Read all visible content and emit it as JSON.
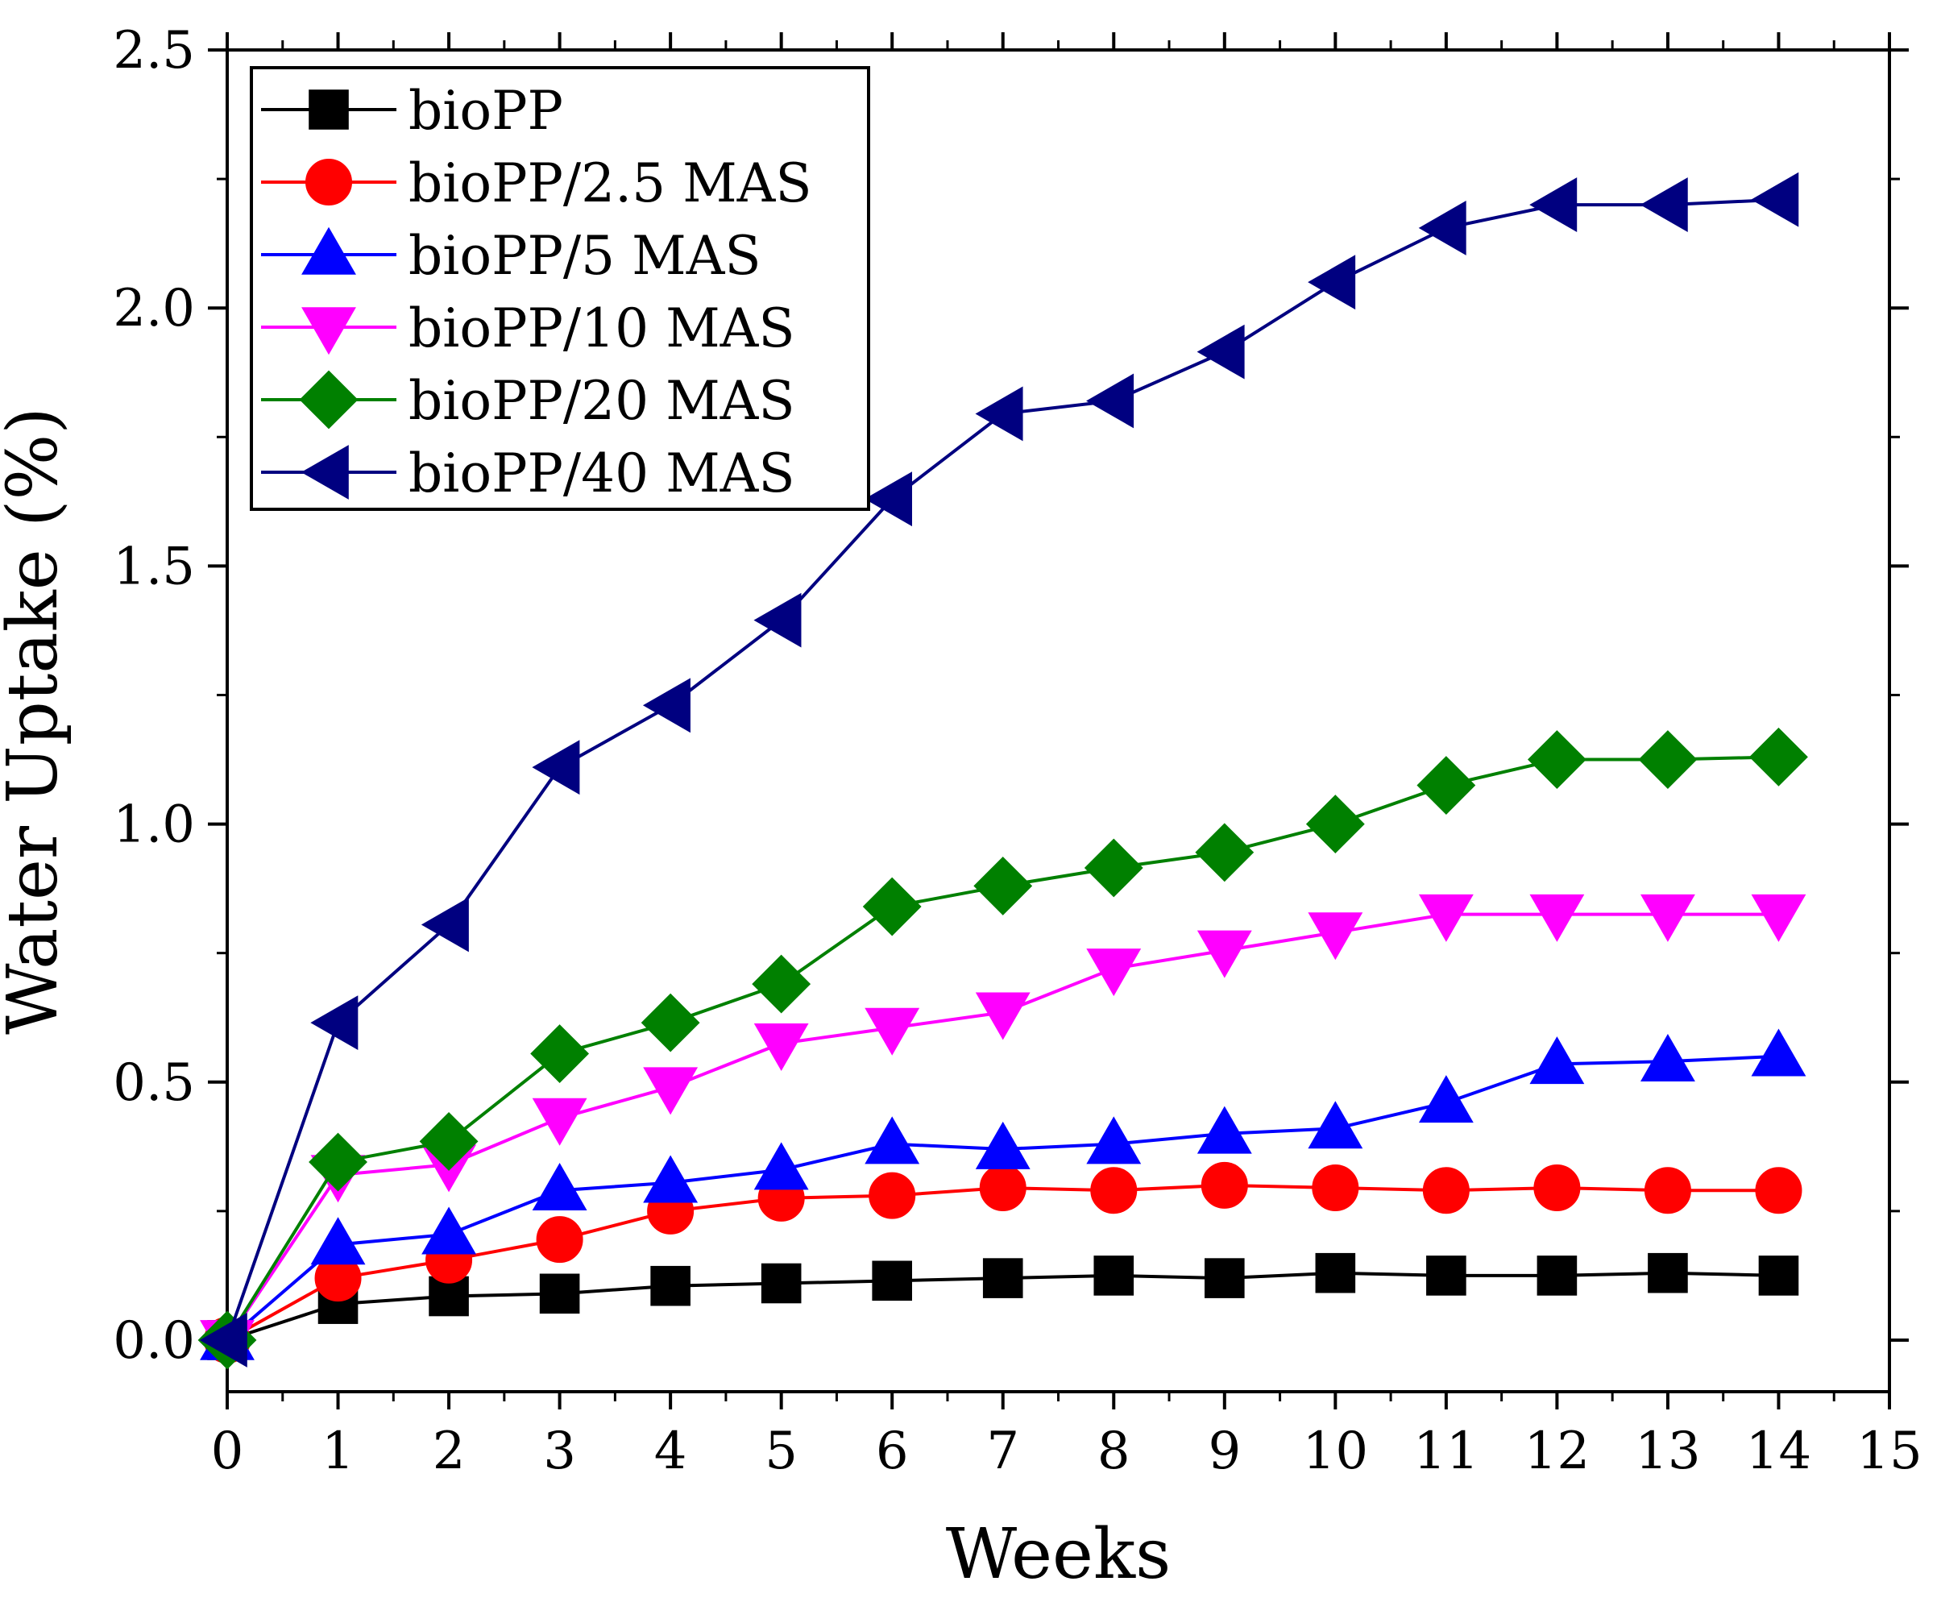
{
  "chart_data": {
    "type": "line",
    "title": "",
    "xlabel": "Weeks",
    "ylabel": "Water Uptake (%)",
    "xlim": [
      0,
      15
    ],
    "ylim": [
      -0.1,
      2.5
    ],
    "x_ticks": [
      "0",
      "1",
      "2",
      "3",
      "4",
      "5",
      "6",
      "7",
      "8",
      "9",
      "10",
      "11",
      "12",
      "13",
      "14",
      "15"
    ],
    "y_ticks": [
      "0.0",
      "0.5",
      "1.0",
      "1.5",
      "2.0",
      "2.5"
    ],
    "grid": false,
    "legend_position": "top-left",
    "x": [
      0,
      1,
      2,
      3,
      4,
      5,
      6,
      7,
      8,
      9,
      10,
      11,
      12,
      13,
      14
    ],
    "series": [
      {
        "name": "bioPP",
        "color": "#000000",
        "marker": "square",
        "values": [
          0.0,
          0.07,
          0.085,
          0.09,
          0.105,
          0.11,
          0.115,
          0.12,
          0.125,
          0.12,
          0.13,
          0.125,
          0.125,
          0.13,
          0.125
        ]
      },
      {
        "name": "bioPP/2.5 MAS",
        "color": "#ff0000",
        "marker": "circle",
        "values": [
          0.0,
          0.12,
          0.155,
          0.195,
          0.25,
          0.275,
          0.28,
          0.295,
          0.29,
          0.3,
          0.295,
          0.29,
          0.295,
          0.29,
          0.29
        ]
      },
      {
        "name": "bioPP/5 MAS",
        "color": "#0000ff",
        "marker": "triangle-up",
        "values": [
          0.0,
          0.185,
          0.205,
          0.29,
          0.305,
          0.33,
          0.38,
          0.37,
          0.38,
          0.4,
          0.41,
          0.46,
          0.535,
          0.54,
          0.55
        ]
      },
      {
        "name": "bioPP/10 MAS",
        "color": "#ff00ff",
        "marker": "triangle-down",
        "values": [
          0.0,
          0.32,
          0.34,
          0.43,
          0.49,
          0.575,
          0.605,
          0.635,
          0.72,
          0.755,
          0.79,
          0.825,
          0.825,
          0.825,
          0.825
        ]
      },
      {
        "name": "bioPP/20 MAS",
        "color": "#008000",
        "marker": "diamond",
        "values": [
          0.0,
          0.345,
          0.385,
          0.555,
          0.615,
          0.69,
          0.84,
          0.88,
          0.915,
          0.945,
          1.0,
          1.075,
          1.125,
          1.125,
          1.13
        ]
      },
      {
        "name": "bioPP/40 MAS",
        "color": "#000080",
        "marker": "triangle-left",
        "values": [
          0.0,
          0.615,
          0.805,
          1.11,
          1.23,
          1.395,
          1.63,
          1.795,
          1.82,
          1.915,
          2.05,
          2.155,
          2.2,
          2.2,
          2.21
        ]
      }
    ]
  }
}
